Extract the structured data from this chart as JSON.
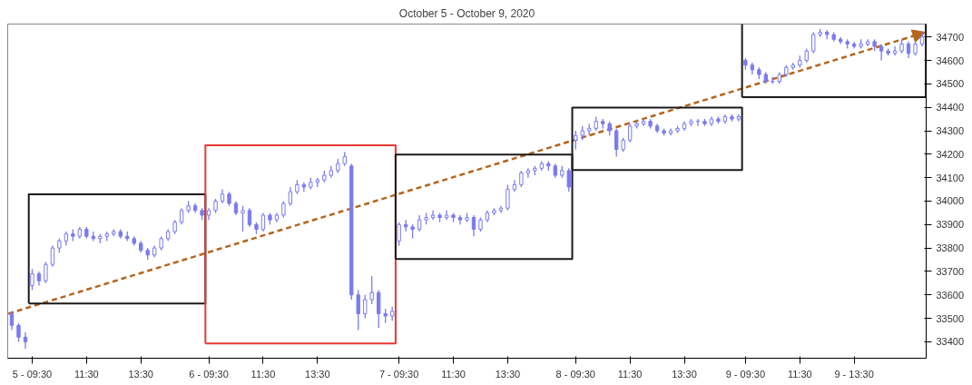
{
  "chart_data": {
    "type": "candlestick",
    "title": "October 5 - October 9, 2020",
    "categories": [
      null,
      null,
      null,
      "5 - 09:30",
      null,
      null,
      null,
      null,
      null,
      null,
      null,
      "11:30",
      null,
      null,
      null,
      null,
      null,
      null,
      null,
      "13:30",
      null,
      null,
      null,
      null,
      null,
      null,
      null,
      null,
      null,
      "6 - 09:30",
      null,
      null,
      null,
      null,
      null,
      null,
      null,
      "11:30",
      null,
      null,
      null,
      null,
      null,
      null,
      null,
      "13:30",
      null,
      null,
      null,
      null,
      null,
      null,
      null,
      null,
      null,
      null,
      null,
      "7 - 09:30",
      null,
      null,
      null,
      null,
      null,
      null,
      null,
      "11:30",
      null,
      null,
      null,
      null,
      null,
      null,
      null,
      "13:30",
      null,
      null,
      null,
      null,
      null,
      null,
      null,
      null,
      null,
      "8 - 09:30",
      null,
      null,
      null,
      null,
      null,
      null,
      null,
      "11:30",
      null,
      null,
      null,
      null,
      null,
      null,
      null,
      "13:30",
      null,
      null,
      null,
      null,
      null,
      null,
      null,
      null,
      "9 - 09:30",
      null,
      null,
      null,
      null,
      null,
      null,
      null,
      "11:30",
      null,
      null,
      null,
      null,
      null,
      null,
      null,
      "9 - 13:30",
      null,
      null,
      null,
      null,
      null,
      null,
      null,
      null,
      null,
      null
    ],
    "ohlc": [
      [
        33520,
        33530,
        33450,
        33470
      ],
      [
        33470,
        33480,
        33400,
        33420
      ],
      [
        33420,
        33440,
        33370,
        33400
      ],
      [
        33640,
        33710,
        33620,
        33690
      ],
      [
        33690,
        33700,
        33640,
        33660
      ],
      [
        33660,
        33740,
        33650,
        33730
      ],
      [
        33730,
        33810,
        33720,
        33800
      ],
      [
        33800,
        33840,
        33780,
        33830
      ],
      [
        33830,
        33870,
        33810,
        33860
      ],
      [
        33860,
        33880,
        33830,
        33850
      ],
      [
        33850,
        33890,
        33840,
        33880
      ],
      [
        33880,
        33890,
        33840,
        33850
      ],
      [
        33850,
        33870,
        33830,
        33840
      ],
      [
        33840,
        33860,
        33820,
        33850
      ],
      [
        33850,
        33870,
        33830,
        33860
      ],
      [
        33860,
        33880,
        33850,
        33870
      ],
      [
        33870,
        33880,
        33840,
        33850
      ],
      [
        33850,
        33870,
        33830,
        33840
      ],
      [
        33840,
        33850,
        33810,
        33820
      ],
      [
        33820,
        33830,
        33780,
        33790
      ],
      [
        33790,
        33800,
        33750,
        33770
      ],
      [
        33770,
        33810,
        33760,
        33800
      ],
      [
        33800,
        33850,
        33790,
        33840
      ],
      [
        33840,
        33880,
        33830,
        33870
      ],
      [
        33870,
        33920,
        33860,
        33910
      ],
      [
        33910,
        33970,
        33900,
        33960
      ],
      [
        33960,
        34000,
        33950,
        33980
      ],
      [
        33980,
        33990,
        33950,
        33960
      ],
      [
        33960,
        33970,
        33920,
        33940
      ],
      [
        33940,
        33970,
        33920,
        33960
      ],
      [
        33960,
        34010,
        33950,
        34000
      ],
      [
        34000,
        34050,
        33990,
        34030
      ],
      [
        34030,
        34040,
        33980,
        33990
      ],
      [
        33990,
        34000,
        33940,
        33950
      ],
      [
        33950,
        33980,
        33870,
        33960
      ],
      [
        33960,
        33970,
        33890,
        33900
      ],
      [
        33900,
        33910,
        33860,
        33880
      ],
      [
        33880,
        33950,
        33870,
        33940
      ],
      [
        33940,
        33950,
        33900,
        33920
      ],
      [
        33920,
        33950,
        33910,
        33940
      ],
      [
        33940,
        34000,
        33930,
        33990
      ],
      [
        33990,
        34060,
        33980,
        34040
      ],
      [
        34040,
        34090,
        34030,
        34070
      ],
      [
        34070,
        34080,
        34040,
        34060
      ],
      [
        34060,
        34100,
        34050,
        34080
      ],
      [
        34080,
        34100,
        34060,
        34090
      ],
      [
        34090,
        34130,
        34080,
        34110
      ],
      [
        34110,
        34150,
        34100,
        34130
      ],
      [
        34130,
        34180,
        34120,
        34160
      ],
      [
        34160,
        34210,
        34150,
        34190
      ],
      [
        34150,
        34160,
        33580,
        33600
      ],
      [
        33600,
        33620,
        33450,
        33520
      ],
      [
        33520,
        33600,
        33500,
        33580
      ],
      [
        33580,
        33680,
        33560,
        33610
      ],
      [
        33610,
        33620,
        33460,
        33520
      ],
      [
        33520,
        33540,
        33480,
        33510
      ],
      [
        33510,
        33550,
        33490,
        33530
      ],
      [
        33830,
        33910,
        33810,
        33900
      ],
      [
        33900,
        33920,
        33870,
        33890
      ],
      [
        33890,
        33900,
        33840,
        33880
      ],
      [
        33880,
        33940,
        33870,
        33920
      ],
      [
        33920,
        33950,
        33900,
        33930
      ],
      [
        33930,
        33960,
        33920,
        33940
      ],
      [
        33940,
        33950,
        33910,
        33930
      ],
      [
        33930,
        33960,
        33920,
        33940
      ],
      [
        33940,
        33950,
        33910,
        33930
      ],
      [
        33930,
        33940,
        33900,
        33920
      ],
      [
        33920,
        33950,
        33910,
        33930
      ],
      [
        33930,
        33940,
        33850,
        33880
      ],
      [
        33880,
        33930,
        33870,
        33920
      ],
      [
        33920,
        33960,
        33910,
        33950
      ],
      [
        33950,
        33970,
        33940,
        33960
      ],
      [
        33960,
        33980,
        33950,
        33970
      ],
      [
        33970,
        34070,
        33960,
        34050
      ],
      [
        34050,
        34090,
        34040,
        34070
      ],
      [
        34070,
        34130,
        34060,
        34120
      ],
      [
        34120,
        34140,
        34100,
        34130
      ],
      [
        34130,
        34150,
        34110,
        34140
      ],
      [
        34140,
        34170,
        34130,
        34160
      ],
      [
        34160,
        34170,
        34130,
        34150
      ],
      [
        34150,
        34160,
        34100,
        34110
      ],
      [
        34110,
        34150,
        34100,
        34130
      ],
      [
        34130,
        34140,
        34040,
        34060
      ],
      [
        34260,
        34300,
        34220,
        34280
      ],
      [
        34280,
        34320,
        34260,
        34300
      ],
      [
        34300,
        34330,
        34280,
        34310
      ],
      [
        34310,
        34360,
        34300,
        34340
      ],
      [
        34340,
        34350,
        34310,
        34330
      ],
      [
        34330,
        34340,
        34280,
        34300
      ],
      [
        34300,
        34310,
        34190,
        34220
      ],
      [
        34220,
        34270,
        34210,
        34260
      ],
      [
        34260,
        34330,
        34250,
        34320
      ],
      [
        34320,
        34340,
        34310,
        34330
      ],
      [
        34330,
        34350,
        34320,
        34340
      ],
      [
        34340,
        34350,
        34310,
        34320
      ],
      [
        34320,
        34330,
        34290,
        34300
      ],
      [
        34300,
        34310,
        34280,
        34290
      ],
      [
        34290,
        34310,
        34280,
        34300
      ],
      [
        34300,
        34320,
        34290,
        34310
      ],
      [
        34310,
        34340,
        34300,
        34330
      ],
      [
        34330,
        34350,
        34320,
        34340
      ],
      [
        34340,
        34350,
        34320,
        34340
      ],
      [
        34340,
        34350,
        34320,
        34330
      ],
      [
        34330,
        34360,
        34320,
        34350
      ],
      [
        34350,
        34360,
        34330,
        34340
      ],
      [
        34340,
        34370,
        34330,
        34360
      ],
      [
        34360,
        34370,
        34340,
        34350
      ],
      [
        34350,
        34370,
        34340,
        34360
      ],
      [
        34600,
        34610,
        34560,
        34580
      ],
      [
        34580,
        34590,
        34540,
        34560
      ],
      [
        34560,
        34570,
        34520,
        34540
      ],
      [
        34540,
        34550,
        34500,
        34510
      ],
      [
        34510,
        34530,
        34500,
        34510
      ],
      [
        34510,
        34550,
        34500,
        34540
      ],
      [
        34540,
        34580,
        34530,
        34570
      ],
      [
        34570,
        34590,
        34560,
        34580
      ],
      [
        34580,
        34620,
        34570,
        34600
      ],
      [
        34600,
        34650,
        34590,
        34640
      ],
      [
        34640,
        34720,
        34630,
        34710
      ],
      [
        34710,
        34735,
        34700,
        34720
      ],
      [
        34720,
        34730,
        34690,
        34710
      ],
      [
        34710,
        34720,
        34680,
        34690
      ],
      [
        34690,
        34700,
        34670,
        34680
      ],
      [
        34680,
        34690,
        34650,
        34670
      ],
      [
        34670,
        34680,
        34650,
        34660
      ],
      [
        34660,
        34690,
        34650,
        34670
      ],
      [
        34670,
        34690,
        34660,
        34680
      ],
      [
        34680,
        34690,
        34640,
        34660
      ],
      [
        34660,
        34670,
        34600,
        34640
      ],
      [
        34640,
        34650,
        34620,
        34630
      ],
      [
        34630,
        34660,
        34620,
        34640
      ],
      [
        34640,
        34690,
        34630,
        34670
      ],
      [
        34670,
        34680,
        34610,
        34630
      ],
      [
        34630,
        34680,
        34620,
        34670
      ],
      [
        34670,
        34720,
        34660,
        34700
      ]
    ],
    "ylim": [
      33330,
      34755
    ],
    "yticks": [
      33400,
      33500,
      33600,
      33700,
      33800,
      33900,
      34000,
      34100,
      34200,
      34300,
      34400,
      34500,
      34600,
      34700
    ],
    "grid": false
  }
}
